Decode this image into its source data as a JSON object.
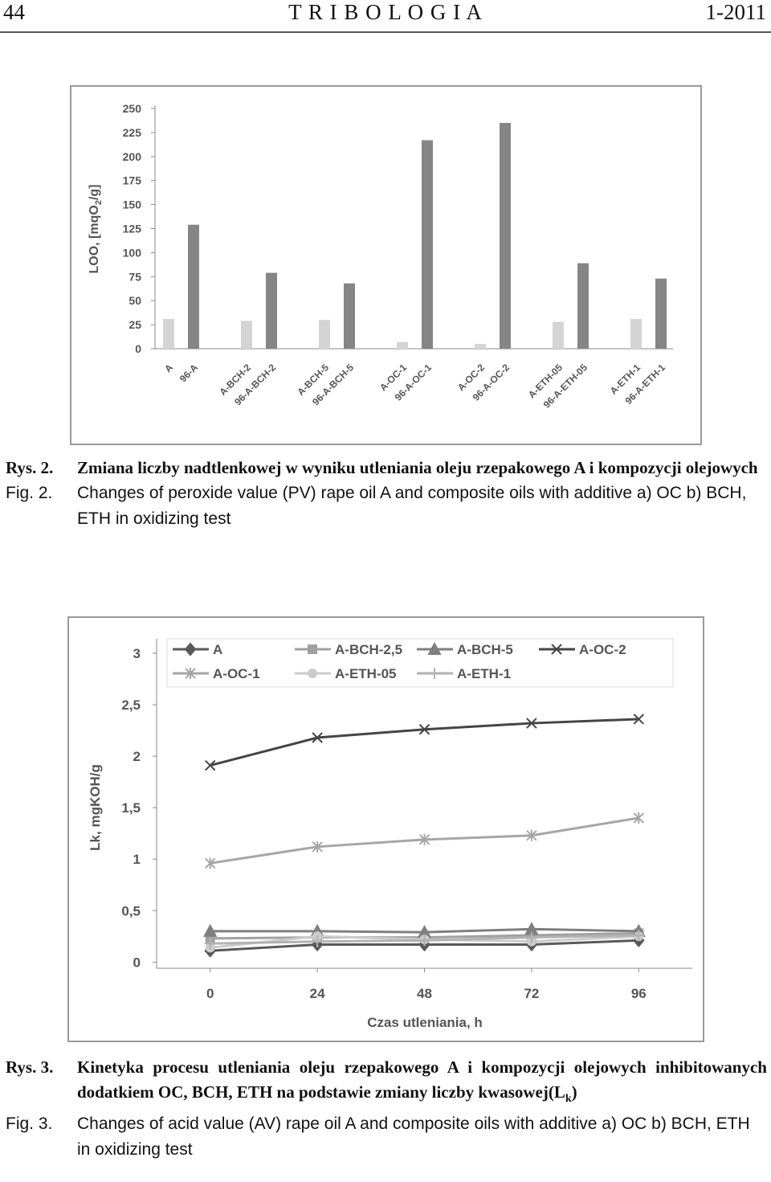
{
  "header": {
    "page": "44",
    "journal": "T R I B O L O G I A",
    "issue": "1-2011"
  },
  "chart_data": [
    {
      "type": "bar",
      "ylabel": [
        "LOO, [mqO",
        "2",
        "/g]"
      ],
      "categories": [
        "A",
        "96-A",
        "A-BCH-2",
        "96-A-BCH-2",
        "A-BCH-5",
        "96-A-BCH-5",
        "A-OC-1",
        "96-A-OC-1",
        "A-OC-2",
        "96-A-OC-2",
        "A-ETH-05",
        "96-A-ETH-05",
        "A-ETH-1",
        "96-A-ETH-1"
      ],
      "values": [
        31,
        129,
        29,
        79,
        30,
        68,
        7,
        217,
        5,
        235,
        28,
        89,
        31,
        73
      ],
      "colors": [
        "#d4d4d4",
        "#858585"
      ],
      "ylim": [
        0,
        250
      ],
      "yticks": [
        0,
        25,
        50,
        75,
        100,
        125,
        150,
        175,
        200,
        225,
        250
      ]
    },
    {
      "type": "line",
      "xlabel": "Czas utleniania, h",
      "ylabel": "Lk, mgKOH/g",
      "x": [
        0,
        24,
        48,
        72,
        96
      ],
      "xlim": [
        -12,
        108
      ],
      "xticks": [
        0,
        24,
        48,
        72,
        96
      ],
      "ylim": [
        -0.06,
        3.14
      ],
      "yticks": [
        0,
        {
          "value": 0.5,
          "label": "0,5"
        },
        1,
        {
          "value": 1.5,
          "label": "1,5"
        },
        2,
        {
          "value": 2.5,
          "label": "2,5"
        },
        3
      ],
      "legend": "top",
      "series": [
        {
          "name": "A",
          "color": "#595959",
          "marker": "diamond",
          "values": [
            0.11,
            0.17,
            0.17,
            0.17,
            0.21
          ]
        },
        {
          "name": "A-BCH-2,5",
          "color": "#a0a0a0",
          "marker": "square",
          "values": [
            0.23,
            0.24,
            0.24,
            0.26,
            0.28
          ]
        },
        {
          "name": "A-BCH-5",
          "color": "#7f7f7f",
          "marker": "triangle",
          "values": [
            0.3,
            0.3,
            0.29,
            0.32,
            0.3
          ]
        },
        {
          "name": "A-OC-2",
          "color": "#454545",
          "marker": "x",
          "values": [
            1.91,
            2.18,
            2.26,
            2.32,
            2.36
          ]
        },
        {
          "name": "A-OC-1",
          "color": "#a6a6a6",
          "marker": "star",
          "values": [
            0.96,
            1.12,
            1.19,
            1.23,
            1.4
          ]
        },
        {
          "name": "A-ETH-05",
          "color": "#cbcbcb",
          "marker": "circle",
          "values": [
            0.14,
            0.25,
            0.22,
            0.2,
            0.25
          ]
        },
        {
          "name": "A-ETH-1",
          "color": "#b2b2b2",
          "marker": "plus",
          "values": [
            0.18,
            0.2,
            0.21,
            0.24,
            0.26
          ]
        }
      ]
    }
  ],
  "captions": [
    {
      "pl_label": "Rys. 2.",
      "pl_text": "Zmiana liczby nadtlenkowej w wyniku utleniania oleju rzepakowego A i kompozycji olejowych",
      "en_label": "Fig. 2.",
      "en_text": "Changes of peroxide value (PV) rape oil A and composite oils with additive a) OC b) BCH, ETH in oxidizing test"
    },
    {
      "pl_label": "Rys. 3.",
      "pl_text": [
        "Kinetyka procesu utleniania oleju rzepakowego A i kompozycji olejowych inhibitowanych dodatkiem OC, BCH, ETH na podstawie zmiany liczby kwasowej(L",
        "k",
        ")"
      ],
      "en_label": "Fig. 3.",
      "en_text": "Changes of acid value (AV) rape oil A and composite oils with additive a) OC b) BCH, ETH in oxidizing test"
    }
  ]
}
